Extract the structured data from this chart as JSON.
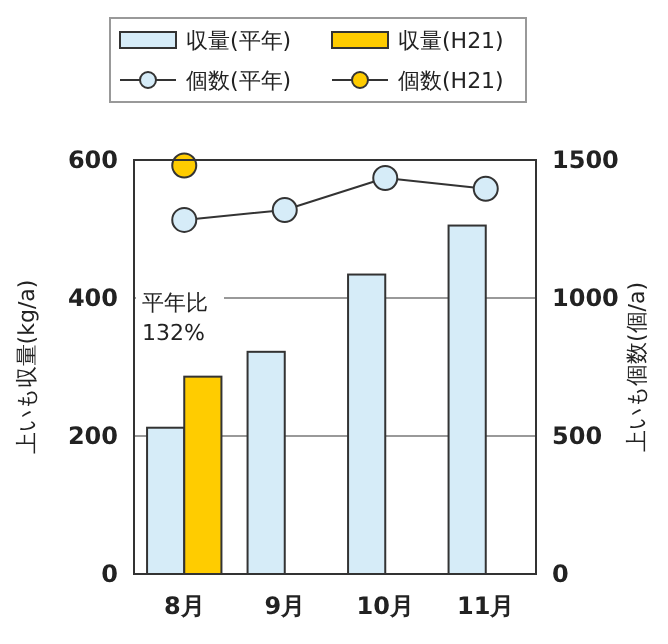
{
  "chart_data": {
    "type": "bar",
    "categories": [
      "8月",
      "9月",
      "10月",
      "11月"
    ],
    "series": [
      {
        "name": "収量(平年)",
        "color": "#d6ecf8",
        "values": [
          212,
          322,
          434,
          505
        ]
      },
      {
        "name": "収量(H21)",
        "color": "#ffcc00",
        "values": [
          286,
          null,
          null,
          null
        ]
      },
      {
        "name": "個数(平年)",
        "type": "line",
        "axis": "y2",
        "color": "#d6ecf8",
        "marker": "circle",
        "values": [
          1283,
          1319,
          1435,
          1396
        ]
      },
      {
        "name": "個数(H21)",
        "type": "line",
        "axis": "y2",
        "color": "#ffcc00",
        "marker": "circle",
        "values": [
          1480,
          null,
          null,
          null
        ]
      }
    ],
    "ylabel": "上いも収量(kg/a)",
    "y2label": "上いも個数(個/a)",
    "ylim": [
      0,
      600
    ],
    "yticks": [
      0,
      200,
      400,
      600
    ],
    "y2lim": [
      0,
      1500
    ],
    "y2ticks": [
      0,
      500,
      1000,
      1500
    ],
    "grid": "y",
    "legend": "top",
    "annotations": [
      "平年比\n132%"
    ]
  }
}
